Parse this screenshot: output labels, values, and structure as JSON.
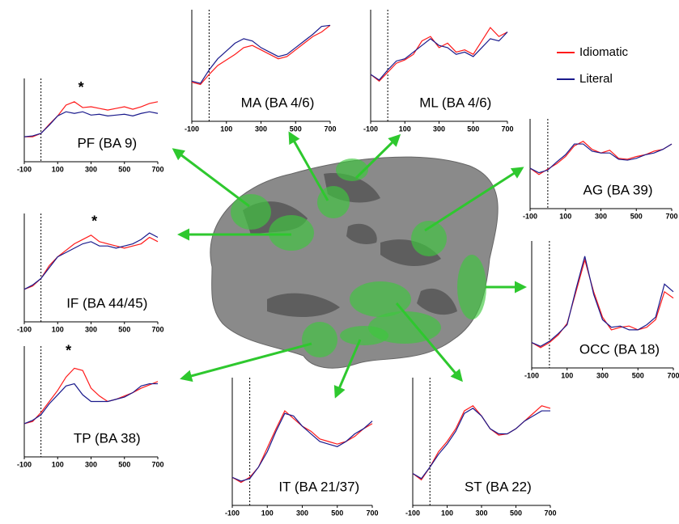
{
  "chart_data": [
    {
      "type": "line",
      "title": "MA (BA 4/6)",
      "x": [
        -100,
        -50,
        0,
        50,
        100,
        150,
        200,
        250,
        300,
        350,
        400,
        450,
        500,
        550,
        600,
        650,
        700
      ],
      "xlim": [
        -100,
        700
      ],
      "xticks": [
        -100,
        100,
        300,
        500,
        700
      ],
      "ylim": [
        0,
        1
      ],
      "vline": 0,
      "series": [
        {
          "name": "Idiomatic",
          "color": "#ff1a1a",
          "values": [
            0.35,
            0.33,
            0.42,
            0.5,
            0.55,
            0.6,
            0.66,
            0.68,
            0.64,
            0.6,
            0.56,
            0.58,
            0.64,
            0.7,
            0.76,
            0.8,
            0.86
          ]
        },
        {
          "name": "Literal",
          "color": "#1a1a8c",
          "values": [
            0.36,
            0.34,
            0.46,
            0.56,
            0.63,
            0.7,
            0.74,
            0.72,
            0.66,
            0.62,
            0.58,
            0.6,
            0.66,
            0.72,
            0.78,
            0.85,
            0.86
          ]
        }
      ]
    },
    {
      "type": "line",
      "title": "ML (BA 4/6)",
      "x": [
        -100,
        -50,
        0,
        50,
        100,
        150,
        200,
        250,
        300,
        350,
        400,
        450,
        500,
        550,
        600,
        650,
        700
      ],
      "xlim": [
        -100,
        700
      ],
      "xticks": [
        -100,
        100,
        300,
        500,
        700
      ],
      "ylim": [
        0,
        1
      ],
      "vline": 0,
      "series": [
        {
          "name": "Idiomatic",
          "color": "#ff1a1a",
          "values": [
            0.42,
            0.36,
            0.44,
            0.52,
            0.55,
            0.6,
            0.72,
            0.76,
            0.66,
            0.7,
            0.62,
            0.64,
            0.6,
            0.72,
            0.84,
            0.76,
            0.8
          ]
        },
        {
          "name": "Literal",
          "color": "#1a1a8c",
          "values": [
            0.42,
            0.37,
            0.46,
            0.54,
            0.56,
            0.62,
            0.68,
            0.74,
            0.68,
            0.66,
            0.6,
            0.62,
            0.58,
            0.66,
            0.74,
            0.72,
            0.8
          ]
        }
      ]
    },
    {
      "type": "line",
      "title": "PF (BA 9)",
      "x": [
        -100,
        -50,
        0,
        50,
        100,
        150,
        200,
        250,
        300,
        350,
        400,
        450,
        500,
        550,
        600,
        650,
        700
      ],
      "xlim": [
        -100,
        700
      ],
      "xticks": [
        -100,
        100,
        300,
        500,
        700
      ],
      "ylim": [
        0,
        1
      ],
      "vline": 0,
      "annotations": [
        {
          "text": "*",
          "x": 240,
          "y": 0.88
        }
      ],
      "series": [
        {
          "name": "Idiomatic",
          "color": "#ff1a1a",
          "values": [
            0.3,
            0.3,
            0.34,
            0.45,
            0.55,
            0.68,
            0.72,
            0.65,
            0.66,
            0.64,
            0.62,
            0.64,
            0.66,
            0.63,
            0.66,
            0.7,
            0.72
          ]
        },
        {
          "name": "Literal",
          "color": "#1a1a8c",
          "values": [
            0.3,
            0.31,
            0.34,
            0.44,
            0.55,
            0.6,
            0.58,
            0.6,
            0.56,
            0.57,
            0.55,
            0.56,
            0.57,
            0.55,
            0.58,
            0.6,
            0.58
          ]
        }
      ]
    },
    {
      "type": "line",
      "title": "AG (BA 39)",
      "x": [
        -100,
        -50,
        0,
        50,
        100,
        150,
        200,
        250,
        300,
        350,
        400,
        450,
        500,
        550,
        600,
        650,
        700
      ],
      "xlim": [
        -100,
        700
      ],
      "xticks": [
        -100,
        100,
        300,
        500,
        700
      ],
      "ylim": [
        0,
        1
      ],
      "vline": 0,
      "series": [
        {
          "name": "Idiomatic",
          "color": "#ff1a1a",
          "values": [
            0.45,
            0.38,
            0.44,
            0.5,
            0.58,
            0.7,
            0.75,
            0.66,
            0.62,
            0.65,
            0.56,
            0.55,
            0.58,
            0.6,
            0.64,
            0.66,
            0.72
          ]
        },
        {
          "name": "Literal",
          "color": "#1a1a8c",
          "values": [
            0.45,
            0.4,
            0.43,
            0.52,
            0.6,
            0.72,
            0.72,
            0.64,
            0.62,
            0.62,
            0.55,
            0.54,
            0.56,
            0.6,
            0.62,
            0.66,
            0.72
          ]
        }
      ]
    },
    {
      "type": "line",
      "title": "IF (BA 44/45)",
      "x": [
        -100,
        -50,
        0,
        50,
        100,
        150,
        200,
        250,
        300,
        350,
        400,
        450,
        500,
        550,
        600,
        650,
        700
      ],
      "xlim": [
        -100,
        700
      ],
      "xticks": [
        -100,
        100,
        300,
        500,
        700
      ],
      "ylim": [
        0,
        1
      ],
      "vline": 0,
      "annotations": [
        {
          "text": "*",
          "x": 320,
          "y": 0.92
        }
      ],
      "series": [
        {
          "name": "Idiomatic",
          "color": "#ff1a1a",
          "values": [
            0.3,
            0.33,
            0.4,
            0.52,
            0.6,
            0.66,
            0.72,
            0.76,
            0.8,
            0.74,
            0.72,
            0.7,
            0.68,
            0.7,
            0.72,
            0.78,
            0.74
          ]
        },
        {
          "name": "Literal",
          "color": "#1a1a8c",
          "values": [
            0.3,
            0.34,
            0.4,
            0.5,
            0.6,
            0.64,
            0.68,
            0.72,
            0.74,
            0.7,
            0.7,
            0.68,
            0.7,
            0.72,
            0.76,
            0.82,
            0.78
          ]
        }
      ]
    },
    {
      "type": "line",
      "title": "OCC (BA 18)",
      "x": [
        -100,
        -50,
        0,
        50,
        100,
        150,
        200,
        250,
        300,
        350,
        400,
        450,
        500,
        550,
        600,
        650,
        700
      ],
      "xlim": [
        -100,
        700
      ],
      "xticks": [
        -100,
        100,
        300,
        500,
        700
      ],
      "ylim": [
        0,
        1
      ],
      "vline": 0,
      "series": [
        {
          "name": "Idiomatic",
          "color": "#ff1a1a",
          "values": [
            0.2,
            0.16,
            0.2,
            0.26,
            0.35,
            0.6,
            0.85,
            0.6,
            0.4,
            0.3,
            0.32,
            0.33,
            0.3,
            0.32,
            0.38,
            0.6,
            0.55
          ]
        },
        {
          "name": "Literal",
          "color": "#1a1a8c",
          "values": [
            0.2,
            0.17,
            0.21,
            0.27,
            0.34,
            0.62,
            0.88,
            0.58,
            0.38,
            0.32,
            0.33,
            0.3,
            0.3,
            0.34,
            0.4,
            0.66,
            0.6
          ]
        }
      ]
    },
    {
      "type": "line",
      "title": "TP (BA 38)",
      "x": [
        -100,
        -50,
        0,
        50,
        100,
        150,
        200,
        250,
        300,
        350,
        400,
        450,
        500,
        550,
        600,
        650,
        700
      ],
      "xlim": [
        -100,
        700
      ],
      "xticks": [
        -100,
        100,
        300,
        500,
        700
      ],
      "ylim": [
        0,
        1
      ],
      "vline": 0,
      "annotations": [
        {
          "text": "*",
          "x": 165,
          "y": 0.95
        }
      ],
      "series": [
        {
          "name": "Idiomatic",
          "color": "#ff1a1a",
          "values": [
            0.3,
            0.32,
            0.4,
            0.5,
            0.6,
            0.72,
            0.8,
            0.78,
            0.62,
            0.55,
            0.5,
            0.52,
            0.55,
            0.58,
            0.62,
            0.65,
            0.68
          ]
        },
        {
          "name": "Literal",
          "color": "#1a1a8c",
          "values": [
            0.3,
            0.33,
            0.38,
            0.48,
            0.56,
            0.64,
            0.66,
            0.56,
            0.5,
            0.5,
            0.5,
            0.52,
            0.54,
            0.58,
            0.64,
            0.66,
            0.66
          ]
        }
      ]
    },
    {
      "type": "line",
      "title": "IT (BA 21/37)",
      "x": [
        -100,
        -50,
        0,
        50,
        100,
        150,
        200,
        250,
        300,
        350,
        400,
        450,
        500,
        550,
        600,
        650,
        700
      ],
      "xlim": [
        -100,
        700
      ],
      "xticks": [
        -100,
        100,
        300,
        500,
        700
      ],
      "ylim": [
        0,
        1
      ],
      "vline": 0,
      "series": [
        {
          "name": "Idiomatic",
          "color": "#ff1a1a",
          "values": [
            0.22,
            0.18,
            0.22,
            0.3,
            0.45,
            0.6,
            0.74,
            0.68,
            0.62,
            0.58,
            0.52,
            0.5,
            0.48,
            0.5,
            0.54,
            0.6,
            0.64
          ]
        },
        {
          "name": "Literal",
          "color": "#1a1a8c",
          "values": [
            0.22,
            0.19,
            0.21,
            0.3,
            0.42,
            0.58,
            0.72,
            0.7,
            0.62,
            0.56,
            0.5,
            0.48,
            0.46,
            0.5,
            0.56,
            0.6,
            0.66
          ]
        }
      ]
    },
    {
      "type": "line",
      "title": "ST (BA 22)",
      "x": [
        -100,
        -50,
        0,
        50,
        100,
        150,
        200,
        250,
        300,
        350,
        400,
        450,
        500,
        550,
        600,
        650,
        700
      ],
      "xlim": [
        -100,
        700
      ],
      "xticks": [
        -100,
        100,
        300,
        500,
        700
      ],
      "ylim": [
        0,
        1
      ],
      "vline": 0,
      "series": [
        {
          "name": "Idiomatic",
          "color": "#ff1a1a",
          "values": [
            0.25,
            0.2,
            0.3,
            0.42,
            0.5,
            0.6,
            0.74,
            0.78,
            0.7,
            0.6,
            0.55,
            0.56,
            0.6,
            0.66,
            0.72,
            0.78,
            0.76
          ]
        },
        {
          "name": "Literal",
          "color": "#1a1a8c",
          "values": [
            0.25,
            0.21,
            0.3,
            0.4,
            0.48,
            0.58,
            0.72,
            0.76,
            0.7,
            0.6,
            0.56,
            0.56,
            0.6,
            0.66,
            0.7,
            0.74,
            0.74
          ]
        }
      ]
    }
  ]
}
